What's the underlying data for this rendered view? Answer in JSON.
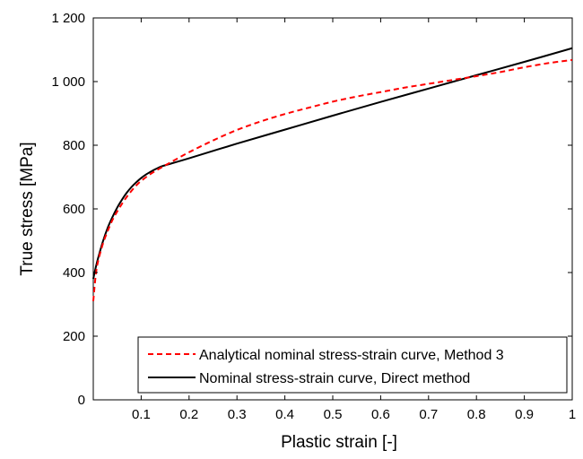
{
  "chart_data": {
    "type": "line",
    "xlabel": "Plastic strain [-]",
    "ylabel": "True stress [MPa]",
    "xlim": [
      0,
      1
    ],
    "ylim": [
      0,
      1200
    ],
    "x_ticks": [
      0.1,
      0.2,
      0.3,
      0.4,
      0.5,
      0.6,
      0.7,
      0.8,
      0.9,
      1
    ],
    "x_tick_labels": [
      "0.1",
      "0.2",
      "0.3",
      "0.4",
      "0.5",
      "0.6",
      "0.7",
      "0.8",
      "0.9",
      "1"
    ],
    "y_ticks": [
      0,
      200,
      400,
      600,
      800,
      1000,
      1200
    ],
    "y_tick_labels": [
      "0",
      "200",
      "400",
      "600",
      "800",
      "1 000",
      "1 200"
    ],
    "grid": false,
    "legend_position": "bottom-right",
    "series": [
      {
        "name": "Analytical nominal stress-strain curve, Method 3",
        "color": "#ff0000",
        "line_style": "dashed",
        "x": [
          0,
          0.005,
          0.01,
          0.02,
          0.03,
          0.04,
          0.05,
          0.06,
          0.07,
          0.08,
          0.09,
          0.1,
          0.12,
          0.14,
          0.16,
          0.2,
          0.25,
          0.3,
          0.35,
          0.4,
          0.45,
          0.5,
          0.55,
          0.6,
          0.65,
          0.7,
          0.75,
          0.8,
          0.85,
          0.9,
          0.95,
          1.0
        ],
        "y": [
          310,
          390,
          435,
          490,
          530,
          565,
          592,
          616,
          638,
          657,
          674,
          688,
          710,
          728,
          745,
          778,
          815,
          848,
          875,
          898,
          918,
          937,
          953,
          967,
          981,
          993,
          1005,
          1017,
          1030,
          1045,
          1058,
          1068
        ]
      },
      {
        "name": "Nominal stress-strain curve, Direct method",
        "color": "#000000",
        "line_style": "solid",
        "x": [
          0,
          0.005,
          0.01,
          0.02,
          0.03,
          0.04,
          0.05,
          0.06,
          0.07,
          0.08,
          0.09,
          0.1,
          0.11,
          0.12,
          0.13,
          0.14,
          0.15,
          0.2,
          0.3,
          0.4,
          0.5,
          0.6,
          0.7,
          0.8,
          0.9,
          1.0
        ],
        "y": [
          380,
          415,
          445,
          497,
          540,
          574,
          604,
          629,
          651,
          669,
          684,
          697,
          708,
          717,
          725,
          732,
          737,
          759,
          805,
          849,
          893,
          936,
          978,
          1020,
          1062,
          1105
        ]
      }
    ]
  }
}
